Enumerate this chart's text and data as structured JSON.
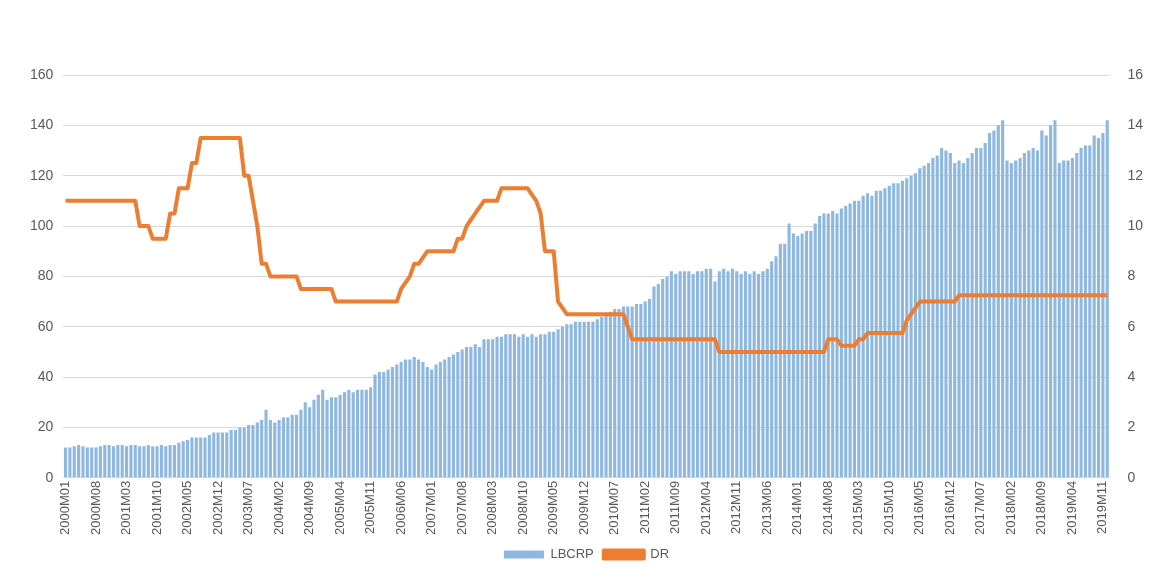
{
  "chart_data": {
    "type": "bar",
    "categories": [
      "2000M01",
      null,
      null,
      null,
      null,
      null,
      null,
      "2000M08",
      null,
      null,
      null,
      null,
      null,
      null,
      "2001M03",
      null,
      null,
      null,
      null,
      null,
      null,
      "2001M10",
      null,
      null,
      null,
      null,
      null,
      null,
      "2002M05",
      null,
      null,
      null,
      null,
      null,
      null,
      "2002M12",
      null,
      null,
      null,
      null,
      null,
      null,
      "2003M07",
      null,
      null,
      null,
      null,
      null,
      null,
      "2004M02",
      null,
      null,
      null,
      null,
      null,
      null,
      "2004M09",
      null,
      null,
      null,
      null,
      null,
      null,
      "2005M04",
      null,
      null,
      null,
      null,
      null,
      null,
      "2005M11",
      null,
      null,
      null,
      null,
      null,
      null,
      "2006M06",
      null,
      null,
      null,
      null,
      null,
      null,
      "2007M01",
      null,
      null,
      null,
      null,
      null,
      null,
      "2007M08",
      null,
      null,
      null,
      null,
      null,
      null,
      "2008M03",
      null,
      null,
      null,
      null,
      null,
      null,
      "2008M10",
      null,
      null,
      null,
      null,
      null,
      null,
      "2009M05",
      null,
      null,
      null,
      null,
      null,
      null,
      "2009M12",
      null,
      null,
      null,
      null,
      null,
      null,
      "2010M07",
      null,
      null,
      null,
      null,
      null,
      null,
      "2011M02",
      null,
      null,
      null,
      null,
      null,
      null,
      "2011M09",
      null,
      null,
      null,
      null,
      null,
      null,
      "2012M04",
      null,
      null,
      null,
      null,
      null,
      null,
      "2012M11",
      null,
      null,
      null,
      null,
      null,
      null,
      "2013M06",
      null,
      null,
      null,
      null,
      null,
      null,
      "2014M01",
      null,
      null,
      null,
      null,
      null,
      null,
      "2014M08",
      null,
      null,
      null,
      null,
      null,
      null,
      "2015M03",
      null,
      null,
      null,
      null,
      null,
      null,
      "2015M10",
      null,
      null,
      null,
      null,
      null,
      null,
      "2016M05",
      null,
      null,
      null,
      null,
      null,
      null,
      "2016M12",
      null,
      null,
      null,
      null,
      null,
      null,
      "2017M07",
      null,
      null,
      null,
      null,
      null,
      null,
      "2018M02",
      null,
      null,
      null,
      null,
      null,
      null,
      "2018M09",
      null,
      null,
      null,
      null,
      null,
      null,
      "2019M04",
      null,
      null,
      null,
      null,
      null,
      null,
      "2019M11",
      null
    ],
    "series": [
      {
        "name": "LBCRP",
        "color": "#8fb8e0",
        "values": [
          12,
          12,
          12.5,
          13,
          12.5,
          12,
          12,
          12,
          12.5,
          13,
          13,
          12.5,
          13,
          13,
          12.5,
          13,
          13,
          12.5,
          12.5,
          13,
          12.5,
          12.5,
          13,
          12.5,
          13,
          13,
          14,
          14.5,
          15,
          16,
          16,
          16,
          16,
          17,
          18,
          18,
          18,
          18,
          19,
          19,
          20,
          20,
          21,
          21,
          22,
          23,
          27,
          23,
          22,
          23,
          24,
          24,
          25,
          25,
          27,
          30,
          28,
          31,
          33,
          35,
          31,
          32,
          32,
          33,
          34,
          35,
          34,
          35,
          35,
          35,
          36,
          41,
          42,
          42,
          43,
          44,
          45,
          46,
          47,
          47,
          48,
          47,
          46,
          44,
          43,
          45,
          46,
          47,
          48,
          49,
          50,
          51,
          52,
          52,
          53,
          52,
          55,
          55,
          55,
          56,
          56,
          57,
          57,
          57,
          56,
          57,
          56,
          57,
          56,
          57,
          57,
          58,
          58,
          59,
          60,
          61,
          61,
          62,
          62,
          62,
          62,
          62,
          63,
          64,
          65,
          66,
          67,
          67,
          68,
          68,
          68,
          69,
          69,
          70,
          71,
          76,
          77,
          79,
          80,
          82,
          81,
          82,
          82,
          82,
          81,
          82,
          82,
          83,
          83,
          78,
          82,
          83,
          82,
          83,
          82,
          81,
          82,
          81,
          82,
          81,
          82,
          83,
          86,
          88,
          93,
          93,
          101,
          97,
          96,
          97,
          98,
          98,
          101,
          104,
          105,
          105,
          106,
          105,
          107,
          108,
          109,
          110,
          110,
          112,
          113,
          112,
          114,
          114,
          115,
          116,
          117,
          117,
          118,
          119,
          120,
          121,
          123,
          124,
          125,
          127,
          128,
          131,
          130,
          129,
          125,
          126,
          125,
          127,
          129,
          131,
          131,
          133,
          137,
          138,
          140,
          142,
          126,
          125,
          126,
          127,
          129,
          130,
          131,
          130,
          138,
          136,
          140,
          142,
          125,
          126,
          126,
          127,
          129,
          131,
          132,
          132,
          136,
          135,
          137,
          142
        ]
      },
      {
        "name": "DR",
        "type": "line",
        "axis": "y2",
        "color": "#ed7d31",
        "values": [
          11,
          11,
          11,
          11,
          11,
          11,
          11,
          11,
          11,
          11,
          11,
          11,
          11,
          11,
          11,
          11,
          11,
          10,
          10,
          10,
          9.5,
          9.5,
          9.5,
          9.5,
          10.5,
          10.5,
          11.5,
          11.5,
          11.5,
          12.5,
          12.5,
          13.5,
          13.5,
          13.5,
          13.5,
          13.5,
          13.5,
          13.5,
          13.5,
          13.5,
          13.5,
          12,
          12,
          11,
          10,
          8.5,
          8.5,
          8,
          8,
          8,
          8,
          8,
          8,
          8,
          7.5,
          7.5,
          7.5,
          7.5,
          7.5,
          7.5,
          7.5,
          7.5,
          7,
          7,
          7,
          7,
          7,
          7,
          7,
          7,
          7,
          7,
          7,
          7,
          7,
          7,
          7,
          7.5,
          7.75,
          8,
          8.5,
          8.5,
          8.75,
          9,
          9,
          9,
          9,
          9,
          9,
          9,
          9.5,
          9.5,
          10,
          10.25,
          10.5,
          10.75,
          11,
          11,
          11,
          11,
          11.5,
          11.5,
          11.5,
          11.5,
          11.5,
          11.5,
          11.5,
          11.25,
          11,
          10.5,
          9,
          9,
          9,
          7,
          6.75,
          6.5,
          6.5,
          6.5,
          6.5,
          6.5,
          6.5,
          6.5,
          6.5,
          6.5,
          6.5,
          6.5,
          6.5,
          6.5,
          6.5,
          6,
          5.5,
          5.5,
          5.5,
          5.5,
          5.5,
          5.5,
          5.5,
          5.5,
          5.5,
          5.5,
          5.5,
          5.5,
          5.5,
          5.5,
          5.5,
          5.5,
          5.5,
          5.5,
          5.5,
          5.5,
          5,
          5,
          5,
          5,
          5,
          5,
          5,
          5,
          5,
          5,
          5,
          5,
          5,
          5,
          5,
          5,
          5,
          5,
          5,
          5,
          5,
          5,
          5,
          5,
          5,
          5.5,
          5.5,
          5.5,
          5.25,
          5.25,
          5.25,
          5.25,
          5.5,
          5.5,
          5.75,
          5.75,
          5.75,
          5.75,
          5.75,
          5.75,
          5.75,
          5.75,
          5.75,
          6.25,
          6.5,
          6.75,
          7,
          7,
          7,
          7,
          7,
          7,
          7,
          7,
          7,
          7.25,
          7.25,
          7.25,
          7.25,
          7.25,
          7.25,
          7.25,
          7.25,
          7.25,
          7.25,
          7.25,
          7.25,
          7.25,
          7.25,
          7.25,
          7.25,
          7.25,
          7.25,
          7.25,
          7.25,
          7.25,
          7.25,
          7.25,
          7.25,
          7.25,
          7.25,
          7.25,
          7.25,
          7.25,
          7.25,
          7.25,
          7.25,
          7.25,
          7.25,
          7.25
        ]
      }
    ],
    "ylim": [
      0,
      160
    ],
    "yticks": [
      0,
      20,
      40,
      60,
      80,
      100,
      120,
      140,
      160
    ],
    "y2lim": [
      0,
      16
    ],
    "y2ticks": [
      0,
      2,
      4,
      6,
      8,
      10,
      12,
      14,
      16
    ],
    "grid": "y",
    "legend": "bottom",
    "marker": "none",
    "line_style": "solid"
  }
}
